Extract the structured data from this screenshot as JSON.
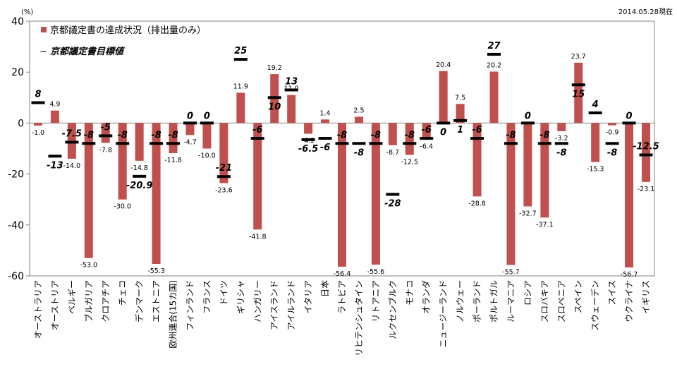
{
  "chart_data": {
    "type": "bar",
    "y_unit": "(%)",
    "date_note": "2014.05.28現在",
    "ylim": [
      -60,
      40
    ],
    "yticks": [
      40,
      20,
      0,
      -20,
      -40,
      -60
    ],
    "legend": {
      "bar_label": "京都議定書の達成状況（排出量のみ）",
      "target_label": "京都議定書目標値",
      "target_marker": "−"
    },
    "colors": {
      "bar": "#C0504D",
      "target": "#000000"
    },
    "categories": [
      "オーストラリア",
      "オーストリア",
      "ベルギー",
      "ブルガリア",
      "クロアチア",
      "チェコ",
      "デンマーク",
      "エストニア",
      "欧州連合(15カ国)",
      "フィンランド",
      "フランス",
      "ドイツ",
      "ギリシャ",
      "ハンガリー",
      "アイスランド",
      "アイルランド",
      "イタリア",
      "日本",
      "ラトビア",
      "リヒテンシュタイン",
      "リトアニア",
      "ルクセンブルク",
      "モナコ",
      "オランダ",
      "ニュージーランド",
      "ノルウェー",
      "ポーランド",
      "ポルトガル",
      "ルーマニア",
      "ロシア",
      "スロバキア",
      "スロベニア",
      "スペイン",
      "スウェーデン",
      "スイス",
      "ウクライナ",
      "イギリス"
    ],
    "series": [
      {
        "name": "京都議定書の達成状況（排出量のみ）",
        "values": [
          -1.0,
          4.9,
          -14.0,
          -53.0,
          -7.8,
          -30.0,
          -14.8,
          -55.3,
          -11.8,
          -4.7,
          -10.0,
          -23.6,
          11.9,
          -41.8,
          19.2,
          11.0,
          -4.2,
          1.4,
          -56.4,
          2.5,
          -55.6,
          -8.7,
          -12.5,
          -6.4,
          20.4,
          7.5,
          -28.8,
          20.2,
          -55.7,
          -32.7,
          -37.1,
          -3.2,
          23.7,
          -15.3,
          -0.9,
          -56.7,
          -23.1
        ]
      },
      {
        "name": "京都議定書目標値",
        "values": [
          8,
          -13,
          -7.5,
          -8,
          -5,
          -8,
          -20.9,
          -8,
          -8,
          0,
          0,
          -21,
          25,
          -6,
          10,
          13,
          -6.5,
          -6,
          -8,
          -8,
          -8,
          -28,
          -8,
          -6,
          0,
          1,
          -6,
          27,
          -8,
          0,
          -8,
          -8,
          15,
          4,
          -8,
          0,
          -12.5
        ]
      }
    ],
    "bar_value_labels": [
      "-1.0",
      "4.9",
      "-14.0",
      "-53.0",
      "-7.8",
      "-30.0",
      "-14.8",
      "-55.3",
      "-11.8",
      "-4.7",
      "-10.0",
      "-23.6",
      "11.9",
      "-41.8",
      "19.2",
      "11.0",
      "-4.2",
      "1.4",
      "-56.4",
      "2.5",
      "-55.6",
      "-8.7",
      "-12.5",
      "-6.4",
      "20.4",
      "7.5",
      "-28.8",
      "20.2",
      "-55.7",
      "-32.7",
      "-37.1",
      "-3.2",
      "23.7",
      "-15.3",
      "-0.9",
      "-56.7",
      "-23.1"
    ],
    "target_value_labels": [
      "8",
      "-13",
      "-7.5",
      "-8",
      "-5",
      "-8",
      "-20.9",
      "-8",
      "-8",
      "0",
      "0",
      "-21",
      "25",
      "-6",
      "10",
      "13",
      "-6.5",
      "-6",
      "-8",
      "-8",
      "-8",
      "-28",
      "-8",
      "-6",
      "0",
      "1",
      "-6",
      "27",
      "-8",
      "0",
      "-8",
      "-8",
      "15",
      "4",
      "-8",
      "0",
      "-12.5"
    ]
  }
}
